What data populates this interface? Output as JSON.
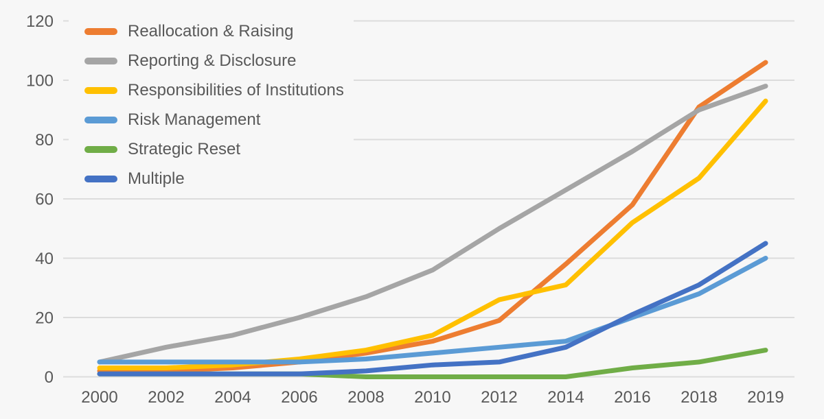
{
  "page": {
    "background": "#F7F7F7",
    "grid_color": "#DCDCDC",
    "axis_text_color": "#595959"
  },
  "chart_data": {
    "type": "line",
    "title": "",
    "xlabel": "",
    "ylabel": "",
    "categories": [
      "2000",
      "2002",
      "2004",
      "2006",
      "2008",
      "2010",
      "2012",
      "2014",
      "2016",
      "2018",
      "2019"
    ],
    "yticks": [
      0,
      20,
      40,
      60,
      80,
      100,
      120
    ],
    "ylim": [
      0,
      120
    ],
    "grid": true,
    "legend_position": "top-left",
    "line_width": 7,
    "series": [
      {
        "name": "Reallocation & Raising",
        "color": "#ED7D31",
        "values": [
          2,
          2,
          3,
          5,
          8,
          12,
          19,
          38,
          58,
          91,
          106
        ]
      },
      {
        "name": "Reporting & Disclosure",
        "color": "#A5A5A5",
        "values": [
          5,
          10,
          14,
          20,
          27,
          36,
          50,
          63,
          76,
          90,
          98
        ]
      },
      {
        "name": "Responsibilities of Institutions",
        "color": "#FFC000",
        "values": [
          3,
          3,
          4,
          6,
          9,
          14,
          26,
          31,
          52,
          67,
          93
        ]
      },
      {
        "name": "Risk Management",
        "color": "#5B9BD5",
        "values": [
          5,
          5,
          5,
          5,
          6,
          8,
          10,
          12,
          20,
          28,
          40
        ]
      },
      {
        "name": "Strategic Reset",
        "color": "#70AD47",
        "values": [
          1,
          1,
          1,
          1,
          0,
          0,
          0,
          0,
          3,
          5,
          9
        ]
      },
      {
        "name": "Multiple",
        "color": "#4472C4",
        "values": [
          1,
          1,
          1,
          1,
          2,
          4,
          5,
          10,
          21,
          31,
          45
        ]
      }
    ]
  }
}
